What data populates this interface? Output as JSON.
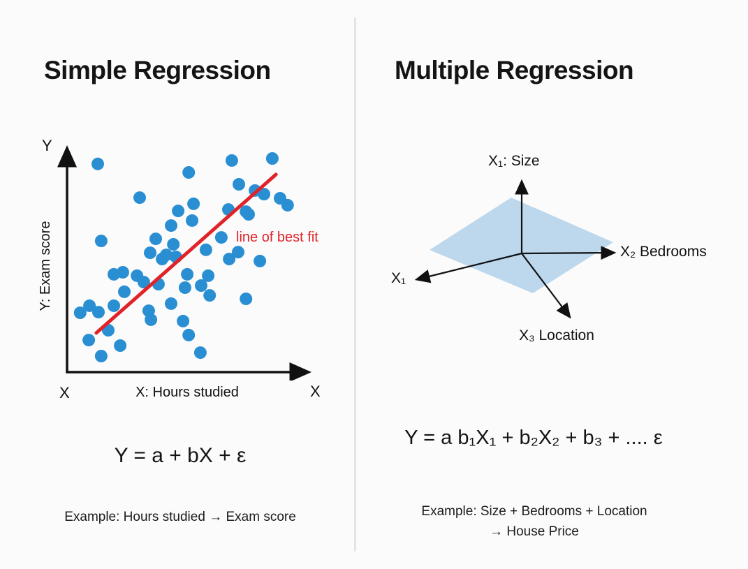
{
  "left_panel": {
    "title": "Simple Regression",
    "plot": {
      "y_axis_letter": "Y",
      "y_axis_caption": "Y: Exam score",
      "x_axis_letter_left": "X",
      "x_axis_caption": "X: Hours studied",
      "x_axis_letter_right": "X"
    },
    "formula": "Y = a + bX + ε",
    "example": "Example: Hours studied → Exam score"
  },
  "right_panel": {
    "title": "Multiple Regression",
    "diagram": {
      "x1_top_label": "X₁: Size",
      "x2_label": "X₂ Bedrooms",
      "x1_left_label": "X₁",
      "x3_label": "X₃ Location"
    },
    "formula": "Y = a b₁X₁ + b₂X₂ + b₃ + .... ε",
    "example_line1": "Example: Size + Bedrooms + Location",
    "example_line2": "→ House Price"
  },
  "colors": {
    "dot_blue": "#2a8fd2",
    "accent_red": "#e02329",
    "plane_blue": "#b9d6ec",
    "text_dark": "#151515",
    "divider_gray": "#e4e4e4"
  },
  "chart_data": [
    {
      "type": "scatter",
      "title": "Simple Regression",
      "xlabel": "X: Hours studied",
      "ylabel": "Y: Exam score",
      "annotation": "line of best fit",
      "axis_range_note": "axes unlabeled; point coordinates in relative 0-100 plot units",
      "xlim": [
        0,
        100
      ],
      "ylim": [
        0,
        100
      ],
      "grid": false,
      "points": [
        [
          12.6,
          90.9
        ],
        [
          49.9,
          87.2
        ],
        [
          67.6,
          92.4
        ],
        [
          84.2,
          93.3
        ],
        [
          29.8,
          76.2
        ],
        [
          70.5,
          82.0
        ],
        [
          77.1,
          79.3
        ],
        [
          80.8,
          77.7
        ],
        [
          87.4,
          75.9
        ],
        [
          90.5,
          72.9
        ],
        [
          45.6,
          70.4
        ],
        [
          51.9,
          73.5
        ],
        [
          51.3,
          66.2
        ],
        [
          66.2,
          71.0
        ],
        [
          73.4,
          70.1
        ],
        [
          74.5,
          68.9
        ],
        [
          42.7,
          64.0
        ],
        [
          63.3,
          58.8
        ],
        [
          14.0,
          57.3
        ],
        [
          36.4,
          58.2
        ],
        [
          43.6,
          55.8
        ],
        [
          34.1,
          52.1
        ],
        [
          40.7,
          51.2
        ],
        [
          39.0,
          49.4
        ],
        [
          44.7,
          50.3
        ],
        [
          57.0,
          53.4
        ],
        [
          70.2,
          52.4
        ],
        [
          66.5,
          49.4
        ],
        [
          79.1,
          48.5
        ],
        [
          19.2,
          42.7
        ],
        [
          22.9,
          43.6
        ],
        [
          28.7,
          42.1
        ],
        [
          31.5,
          39.3
        ],
        [
          37.5,
          38.4
        ],
        [
          23.5,
          35.1
        ],
        [
          49.3,
          42.7
        ],
        [
          57.9,
          42.1
        ],
        [
          55.0,
          37.8
        ],
        [
          48.4,
          36.9
        ],
        [
          58.5,
          33.5
        ],
        [
          73.4,
          32.0
        ],
        [
          5.4,
          25.9
        ],
        [
          9.2,
          29.0
        ],
        [
          12.9,
          26.2
        ],
        [
          19.2,
          29.0
        ],
        [
          33.5,
          26.8
        ],
        [
          34.4,
          22.9
        ],
        [
          42.7,
          29.9
        ],
        [
          47.6,
          22.3
        ],
        [
          49.9,
          16.2
        ],
        [
          8.9,
          14.0
        ],
        [
          16.9,
          18.3
        ],
        [
          21.8,
          11.6
        ],
        [
          14.0,
          7.0
        ],
        [
          54.7,
          8.5
        ]
      ],
      "fit_line": {
        "x1": 12.0,
        "y1": 17.1,
        "x2": 85.7,
        "y2": 86.3
      }
    },
    {
      "type": "diagram",
      "title": "Multiple Regression",
      "description": "3D regression plane over three predictor axes",
      "axes": [
        "X₁: Size",
        "X₂ Bedrooms",
        "X₃ Location"
      ],
      "plane": "light blue parallelogram through origin"
    }
  ]
}
